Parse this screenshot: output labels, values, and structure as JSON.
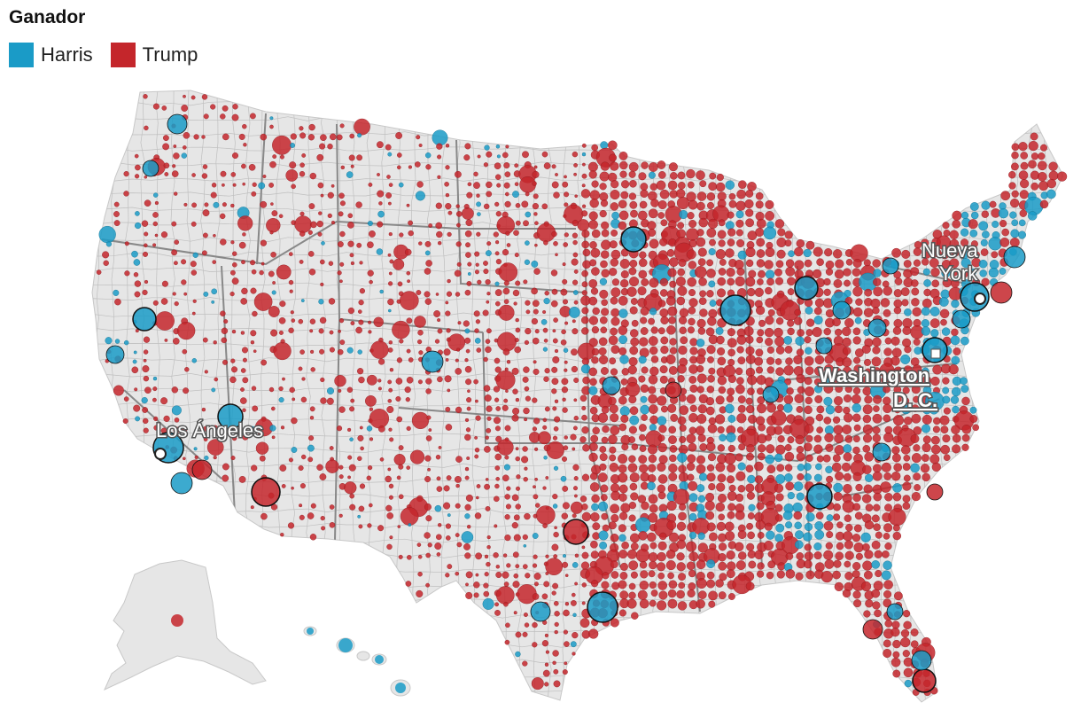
{
  "legend": {
    "title": "Ganador",
    "items": [
      {
        "label": "Harris",
        "color": "#1a9bc7"
      },
      {
        "label": "Trump",
        "color": "#c4262b"
      }
    ]
  },
  "colors": {
    "land": "#e6e6e6",
    "border": "#bfbfbf",
    "state_border": "#888888",
    "harris": "#1a9bc7",
    "trump": "#c4262b"
  },
  "cities": {
    "new_york": [
      "Nueva",
      "York"
    ],
    "washington": [
      "Washington",
      "D. C."
    ],
    "los_angeles": "Los Ángeles"
  }
}
